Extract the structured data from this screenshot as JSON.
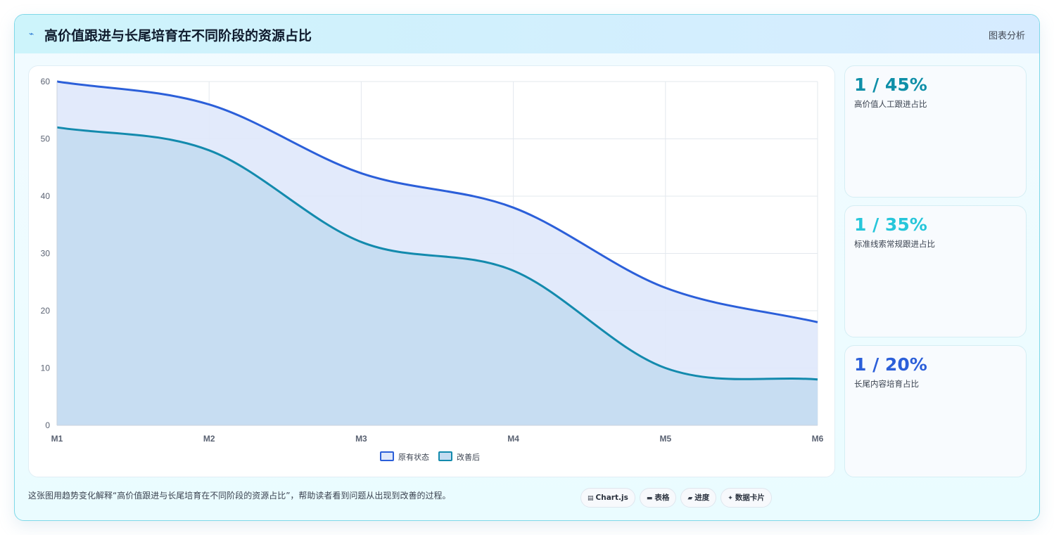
{
  "header": {
    "title": "高价值跟进与长尾培育在不同阶段的资源占比",
    "link": "图表分析",
    "icon": "zap-icon"
  },
  "kpis": [
    {
      "value": "1 / 45%",
      "label": "高价值人工跟进占比",
      "color": "#0e8fa8"
    },
    {
      "value": "1 / 35%",
      "label": "标准线索常规跟进占比",
      "color": "#26c6da"
    },
    {
      "value": "1 / 20%",
      "label": "长尾内容培育占比",
      "color": "#2b5fd9"
    }
  ],
  "caption": "这张图用趋势变化解释“高价值跟进与长尾培育在不同阶段的资源占比”，帮助读者看到问题从出现到改善的过程。",
  "chips": [
    {
      "icon": "chart-icon",
      "glyph": "▤",
      "label": "Chart.js"
    },
    {
      "icon": "table-icon",
      "glyph": "▬",
      "label": "表格"
    },
    {
      "icon": "progress-icon",
      "glyph": "▰",
      "label": "进度"
    },
    {
      "icon": "sparkle-icon",
      "glyph": "✦",
      "label": "数据卡片"
    }
  ],
  "chart_data": {
    "type": "area",
    "categories": [
      "M1",
      "M2",
      "M3",
      "M4",
      "M5",
      "M6"
    ],
    "ylim": [
      0,
      60
    ],
    "yticks": [
      0,
      10,
      20,
      30,
      40,
      50,
      60
    ],
    "grid": true,
    "legend_position": "bottom",
    "series": [
      {
        "name": "原有状态",
        "values": [
          60,
          56,
          44,
          38,
          24,
          18
        ],
        "color": "#2b5fd9",
        "fill": "#dfe8fb"
      },
      {
        "name": "改善后",
        "values": [
          52,
          48,
          32,
          27,
          10,
          8
        ],
        "color": "#138aad",
        "fill": "#c4dcf1"
      }
    ]
  }
}
